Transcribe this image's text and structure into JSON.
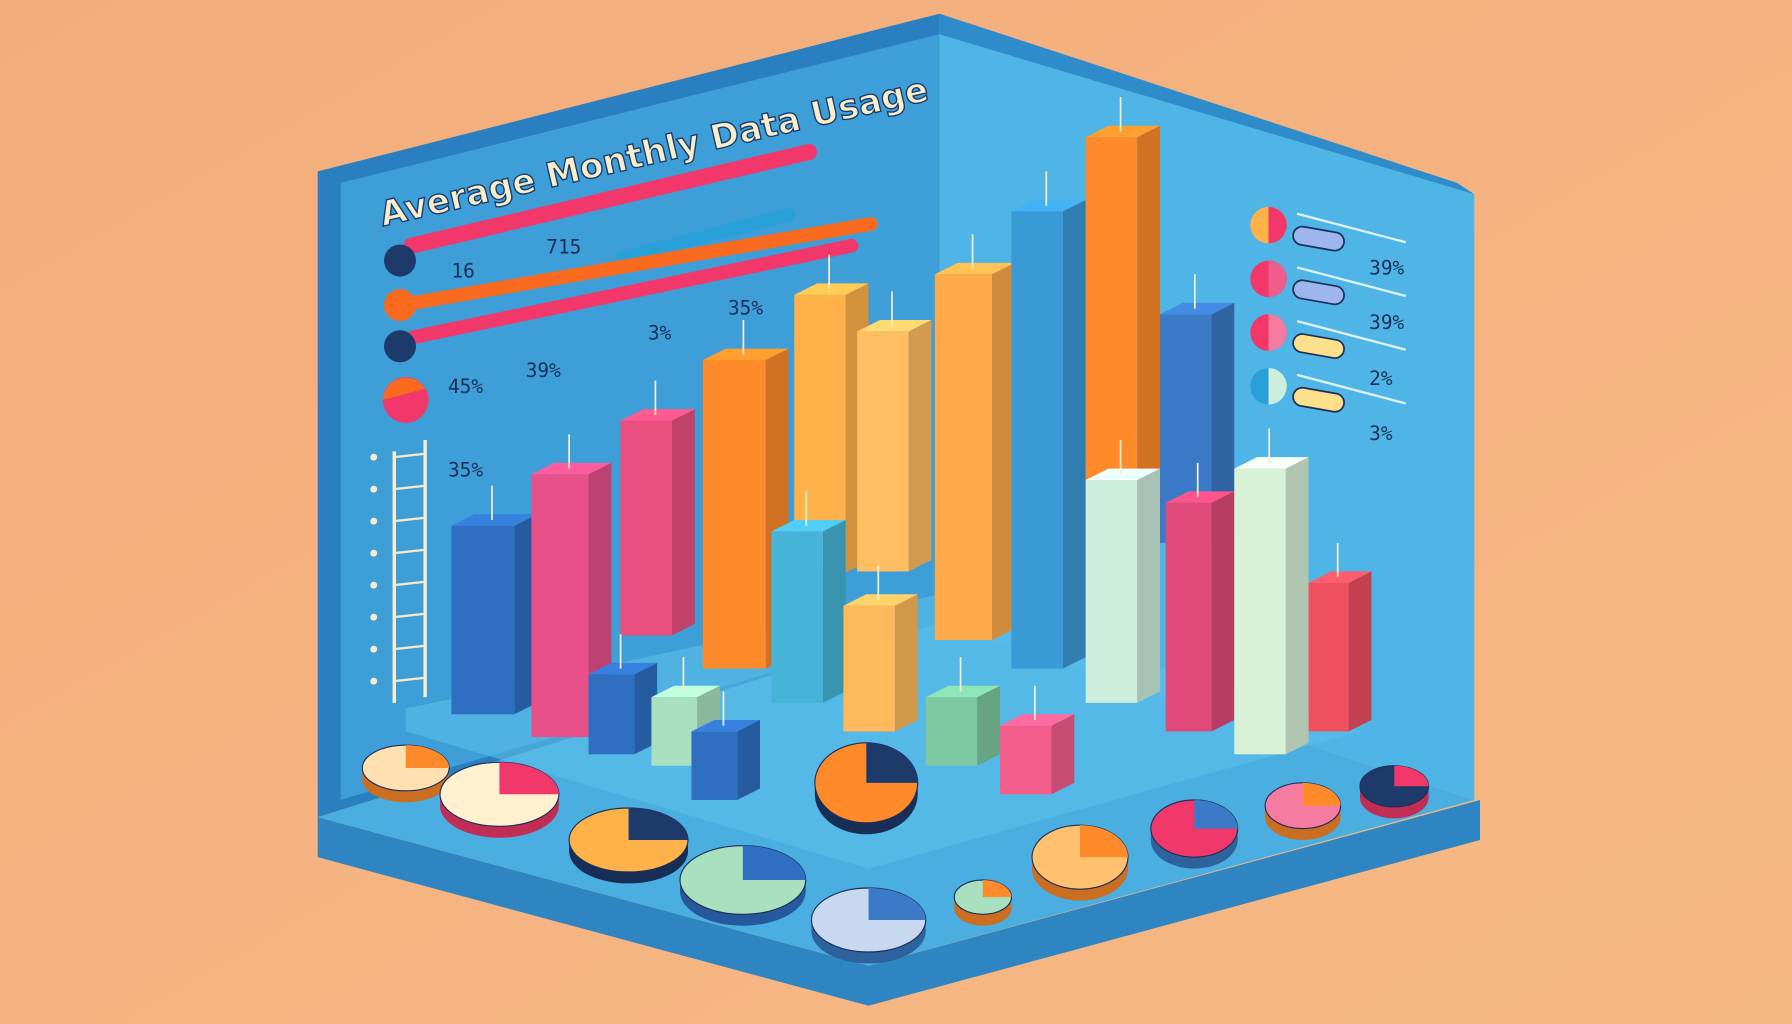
{
  "title": "Average Monthly Data Usage",
  "left_labels": [
    "16",
    "715",
    "35%",
    "45%",
    "39%",
    "3%",
    "35%"
  ],
  "right_labels": [
    "39%",
    "39%",
    "2%",
    "3%"
  ]
}
